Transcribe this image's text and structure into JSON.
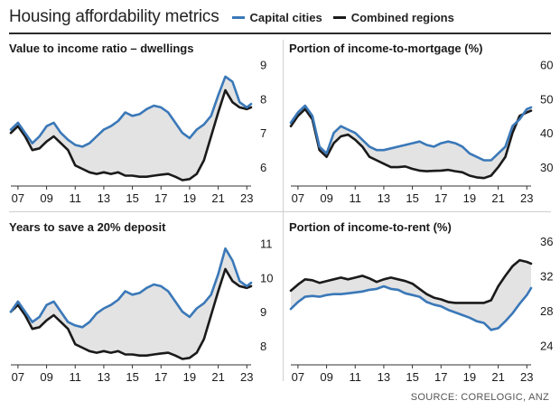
{
  "header": {
    "title": "Housing affordability metrics",
    "legend": [
      {
        "label": "Capital cities",
        "color": "#3a78b8"
      },
      {
        "label": "Combined regions",
        "color": "#1a1a1a"
      }
    ]
  },
  "source": "SOURCE: CORELOGIC, ANZ",
  "colors": {
    "capital": "#3a78b8",
    "regions": "#1a1a1a",
    "fill": "#e3e3e3"
  },
  "chart_data": [
    {
      "type": "line",
      "title": "Value to income ratio – dwellings",
      "x": [
        2006.5,
        2007,
        2007.5,
        2008,
        2008.5,
        2009,
        2009.5,
        2010,
        2010.5,
        2011,
        2011.5,
        2012,
        2012.5,
        2013,
        2013.5,
        2014,
        2014.5,
        2015,
        2015.5,
        2016,
        2016.5,
        2017,
        2017.5,
        2018,
        2018.5,
        2019,
        2019.5,
        2020,
        2020.5,
        2021,
        2021.5,
        2022,
        2022.5,
        2023,
        2023.3
      ],
      "xticks": [
        2007,
        2009,
        2011,
        2013,
        2015,
        2017,
        2019,
        2021,
        2023
      ],
      "xtick_labels": [
        "07",
        "09",
        "11",
        "13",
        "15",
        "17",
        "19",
        "21",
        "23"
      ],
      "yticks": [
        6,
        7,
        8,
        9
      ],
      "ylim": [
        5.5,
        9.2
      ],
      "series": [
        {
          "name": "Capital cities",
          "values": [
            7.1,
            7.3,
            7.0,
            6.7,
            6.9,
            7.2,
            7.3,
            7.0,
            6.8,
            6.65,
            6.6,
            6.7,
            6.9,
            7.1,
            7.2,
            7.35,
            7.6,
            7.5,
            7.55,
            7.7,
            7.8,
            7.75,
            7.6,
            7.3,
            7.0,
            6.85,
            7.1,
            7.25,
            7.5,
            8.1,
            8.65,
            8.5,
            7.9,
            7.75,
            7.85
          ]
        },
        {
          "name": "Combined regions",
          "values": [
            7.0,
            7.2,
            6.9,
            6.5,
            6.55,
            6.75,
            6.9,
            6.7,
            6.5,
            6.05,
            5.95,
            5.85,
            5.8,
            5.85,
            5.8,
            5.85,
            5.75,
            5.75,
            5.72,
            5.72,
            5.75,
            5.78,
            5.8,
            5.72,
            5.62,
            5.65,
            5.8,
            6.2,
            6.9,
            7.6,
            8.25,
            7.9,
            7.75,
            7.7,
            7.75
          ]
        }
      ]
    },
    {
      "type": "line",
      "title": "Portion of income-to-mortgage (%)",
      "x": [
        2006.5,
        2007,
        2007.5,
        2008,
        2008.5,
        2009,
        2009.5,
        2010,
        2010.5,
        2011,
        2011.5,
        2012,
        2012.5,
        2013,
        2013.5,
        2014,
        2014.5,
        2015,
        2015.5,
        2016,
        2016.5,
        2017,
        2017.5,
        2018,
        2018.5,
        2019,
        2019.5,
        2020,
        2020.5,
        2021,
        2021.5,
        2022,
        2022.5,
        2023,
        2023.3
      ],
      "xticks": [
        2007,
        2009,
        2011,
        2013,
        2015,
        2017,
        2019,
        2021,
        2023
      ],
      "xtick_labels": [
        "07",
        "09",
        "11",
        "13",
        "15",
        "17",
        "19",
        "21",
        "23"
      ],
      "yticks": [
        30,
        40,
        50,
        60
      ],
      "ylim": [
        25,
        62
      ],
      "series": [
        {
          "name": "Capital cities",
          "values": [
            43,
            46,
            48,
            45,
            36,
            34,
            40,
            42,
            41,
            40,
            38,
            36,
            35,
            35,
            35.5,
            36,
            36.5,
            37,
            37.5,
            36.5,
            36,
            37,
            37.5,
            37,
            36,
            34,
            33,
            32,
            32,
            34,
            36,
            42,
            44,
            47,
            47.5
          ]
        },
        {
          "name": "Combined regions",
          "values": [
            42,
            45,
            47,
            44,
            35,
            33,
            37,
            39,
            39.5,
            38,
            36,
            33,
            32,
            31,
            30,
            30,
            30.2,
            29.5,
            29,
            28.8,
            28.9,
            29,
            29.2,
            28.8,
            28.5,
            27.5,
            27,
            26.8,
            27.5,
            30,
            33,
            40,
            45,
            46,
            46.5
          ]
        }
      ]
    },
    {
      "type": "line",
      "title": "Years to save a 20% deposit",
      "x": [
        2006.5,
        2007,
        2007.5,
        2008,
        2008.5,
        2009,
        2009.5,
        2010,
        2010.5,
        2011,
        2011.5,
        2012,
        2012.5,
        2013,
        2013.5,
        2014,
        2014.5,
        2015,
        2015.5,
        2016,
        2016.5,
        2017,
        2017.5,
        2018,
        2018.5,
        2019,
        2019.5,
        2020,
        2020.5,
        2021,
        2021.5,
        2022,
        2022.5,
        2023,
        2023.3
      ],
      "xticks": [
        2007,
        2009,
        2011,
        2013,
        2015,
        2017,
        2019,
        2021,
        2023
      ],
      "xtick_labels": [
        "07",
        "09",
        "11",
        "13",
        "15",
        "17",
        "19",
        "21",
        "23"
      ],
      "yticks": [
        8,
        9,
        10,
        11
      ],
      "ylim": [
        7.5,
        11.2
      ],
      "series": [
        {
          "name": "Capital cities",
          "values": [
            9.0,
            9.3,
            9.0,
            8.7,
            8.85,
            9.2,
            9.3,
            9.0,
            8.7,
            8.6,
            8.55,
            8.7,
            8.95,
            9.1,
            9.2,
            9.35,
            9.6,
            9.5,
            9.55,
            9.7,
            9.8,
            9.75,
            9.6,
            9.3,
            9.0,
            8.85,
            9.1,
            9.25,
            9.5,
            10.1,
            10.85,
            10.5,
            9.9,
            9.75,
            9.85
          ]
        },
        {
          "name": "Combined regions",
          "values": [
            9.0,
            9.2,
            8.9,
            8.5,
            8.55,
            8.75,
            8.9,
            8.7,
            8.5,
            8.05,
            7.95,
            7.85,
            7.8,
            7.85,
            7.8,
            7.85,
            7.75,
            7.75,
            7.72,
            7.72,
            7.75,
            7.78,
            7.8,
            7.72,
            7.62,
            7.65,
            7.8,
            8.2,
            8.9,
            9.6,
            10.25,
            9.9,
            9.75,
            9.7,
            9.75
          ]
        }
      ]
    },
    {
      "type": "line",
      "title": "Portion of income-to-rent (%)",
      "x": [
        2006.5,
        2007,
        2007.5,
        2008,
        2008.5,
        2009,
        2009.5,
        2010,
        2010.5,
        2011,
        2011.5,
        2012,
        2012.5,
        2013,
        2013.5,
        2014,
        2014.5,
        2015,
        2015.5,
        2016,
        2016.5,
        2017,
        2017.5,
        2018,
        2018.5,
        2019,
        2019.5,
        2020,
        2020.5,
        2021,
        2021.5,
        2022,
        2022.5,
        2023,
        2023.3
      ],
      "xticks": [
        2007,
        2009,
        2011,
        2013,
        2015,
        2017,
        2019,
        2021,
        2023
      ],
      "xtick_labels": [
        "07",
        "09",
        "11",
        "13",
        "15",
        "17",
        "19",
        "21",
        "23"
      ],
      "yticks": [
        24,
        28,
        32,
        36
      ],
      "ylim": [
        22,
        36.5
      ],
      "series": [
        {
          "name": "Capital cities",
          "values": [
            28.2,
            29,
            29.6,
            29.7,
            29.6,
            29.8,
            29.9,
            29.9,
            30.0,
            30.1,
            30.2,
            30.4,
            30.5,
            30.8,
            30.5,
            30.4,
            30.0,
            29.8,
            29.6,
            29.0,
            28.7,
            28.5,
            28.1,
            27.8,
            27.5,
            27.2,
            26.8,
            26.6,
            25.8,
            26.0,
            26.8,
            27.7,
            28.8,
            29.8,
            30.6
          ]
        },
        {
          "name": "Combined regions",
          "values": [
            30.3,
            31,
            31.6,
            31.5,
            31.2,
            31.4,
            31.6,
            31.8,
            31.6,
            31.8,
            32.0,
            31.7,
            31.3,
            31.6,
            31.8,
            31.6,
            31.4,
            31.1,
            30.5,
            29.9,
            29.5,
            29.3,
            29.0,
            28.9,
            28.9,
            28.9,
            28.9,
            28.9,
            29.2,
            30.8,
            32.0,
            33.1,
            33.8,
            33.6,
            33.4
          ]
        }
      ]
    }
  ]
}
